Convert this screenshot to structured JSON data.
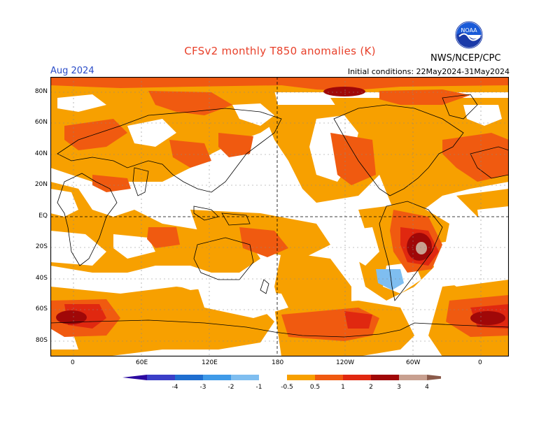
{
  "header": {
    "title": "CFSv2 monthly T850 anomalies (K)",
    "month": "Aug 2024",
    "initial_conditions": "Initial conditions: 22May2024-31May2024",
    "agency": "NWS/NCEP/CPC",
    "logo_text": "NOAA"
  },
  "map": {
    "lat_labels": [
      "80N",
      "60N",
      "40N",
      "20N",
      "EQ",
      "20S",
      "40S",
      "60S",
      "80S"
    ],
    "lon_labels": [
      "0",
      "60E",
      "120E",
      "180",
      "120W",
      "60W",
      "0"
    ],
    "grid": true,
    "projection": "cylindrical",
    "reference_lines": [
      "equator",
      "dateline"
    ]
  },
  "legend": {
    "labels": [
      "-4",
      "-3",
      "-2",
      "-1",
      "-0.5",
      "0.5",
      "1",
      "2",
      "3",
      "4"
    ],
    "bins": [
      {
        "range": "< -4",
        "color": "#2c0aa0"
      },
      {
        "range": "-4 to -3",
        "color": "#3b3fc8"
      },
      {
        "range": "-3 to -2",
        "color": "#1f6ed0"
      },
      {
        "range": "-2 to -1",
        "color": "#3f9ae8"
      },
      {
        "range": "-1 to -0.5",
        "color": "#7fbef0"
      },
      {
        "range": "-0.5 to 0.5",
        "color": "#ffffff"
      },
      {
        "range": "0.5 to 1",
        "color": "#f7a000"
      },
      {
        "range": "1 to 2",
        "color": "#f05a10"
      },
      {
        "range": "2 to 3",
        "color": "#e02810"
      },
      {
        "range": "3 to 4",
        "color": "#a00808"
      },
      {
        "range": "> 4",
        "color": "#c8a090"
      },
      {
        "range": "extreme",
        "color": "#8a5a4a"
      }
    ]
  },
  "colors": {
    "title": "#e8402a",
    "month": "#2a4cc8",
    "anom_05_1": "#f7a000",
    "anom_1_2": "#f05a10",
    "anom_2_3": "#e02810",
    "anom_3_4": "#a00808",
    "anom_gt4": "#c8a090",
    "anom_neg": "#7fbef0"
  }
}
